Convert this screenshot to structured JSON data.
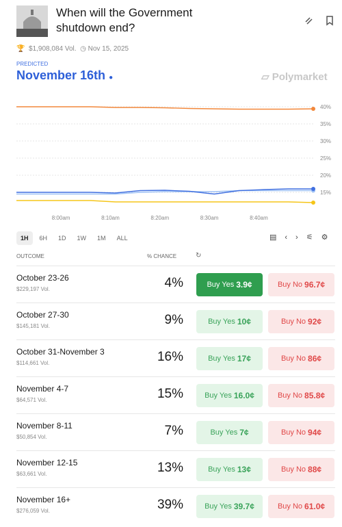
{
  "header": {
    "title": "When will the Government shutdown end?",
    "volume": "$1,908,084 Vol.",
    "date": "Nov 15, 2025"
  },
  "prediction": {
    "label": "PREDICTED",
    "value": "November 16th",
    "brand": "Polymarket"
  },
  "chart_data": {
    "type": "line",
    "x": [
      471,
      476,
      481,
      486,
      491,
      496,
      501,
      506,
      511,
      516,
      521,
      526,
      531
    ],
    "xlim": [
      471,
      531
    ],
    "xticks": [
      {
        "value": 480,
        "label": "8:00am"
      },
      {
        "value": 490,
        "label": "8:10am"
      },
      {
        "value": 500,
        "label": "8:20am"
      },
      {
        "value": 510,
        "label": "8:30am"
      },
      {
        "value": 520,
        "label": "8:40am"
      }
    ],
    "ylim": [
      11,
      42
    ],
    "yticks": [
      {
        "value": 40,
        "label": "40%"
      },
      {
        "value": 35,
        "label": "35%"
      },
      {
        "value": 30,
        "label": "30%"
      },
      {
        "value": 25,
        "label": "25%"
      },
      {
        "value": 20,
        "label": "20%"
      },
      {
        "value": 15,
        "label": "15%"
      }
    ],
    "grid": true,
    "series": [
      {
        "color": "#f2873a",
        "values": [
          40,
          40,
          40,
          40,
          39.8,
          39.8,
          39.7,
          39.5,
          39.4,
          39.3,
          39.3,
          39.3,
          39.4
        ]
      },
      {
        "color": "#9ec1f5",
        "values": [
          14.5,
          14.5,
          14.5,
          14.5,
          14.5,
          15,
          15.2,
          15.2,
          15.2,
          15.5,
          15.5,
          15.5,
          15.5
        ]
      },
      {
        "color": "#3f6fe0",
        "values": [
          15,
          15,
          15,
          15,
          14.8,
          15.5,
          15.6,
          15.3,
          14.5,
          15.5,
          15.8,
          16,
          16
        ]
      },
      {
        "color": "#f5c518",
        "values": [
          12.6,
          12.6,
          12.6,
          12.6,
          12.2,
          12.2,
          12.2,
          12.2,
          12.2,
          12.2,
          12.2,
          12.2,
          12
        ]
      }
    ]
  },
  "ranges": {
    "options": [
      "1H",
      "6H",
      "1D",
      "1W",
      "1M",
      "ALL"
    ],
    "selected": "1H"
  },
  "table": {
    "columns": [
      "OUTCOME",
      "% CHANCE"
    ],
    "buy_yes": "Buy Yes",
    "buy_no": "Buy No",
    "rows": [
      {
        "name": "October 23-26",
        "volume": "$229,197 Vol.",
        "chance": "4%",
        "yes": "3.9¢",
        "no": "96.7¢"
      },
      {
        "name": "October 27-30",
        "volume": "$145,181 Vol.",
        "chance": "9%",
        "yes": "10¢",
        "no": "92¢"
      },
      {
        "name": "October 31-November 3",
        "volume": "$114,661 Vol.",
        "chance": "16%",
        "yes": "17¢",
        "no": "86¢"
      },
      {
        "name": "November 4-7",
        "volume": "$64,571 Vol.",
        "chance": "15%",
        "yes": "16.0¢",
        "no": "85.8¢"
      },
      {
        "name": "November 8-11",
        "volume": "$50,854 Vol.",
        "chance": "7%",
        "yes": "7¢",
        "no": "94¢"
      },
      {
        "name": "November 12-15",
        "volume": "$63,661 Vol.",
        "chance": "13%",
        "yes": "13¢",
        "no": "88¢"
      },
      {
        "name": "November 16+",
        "volume": "$276,059 Vol.",
        "chance": "39%",
        "yes": "39.7¢",
        "no": "61.0¢"
      }
    ]
  }
}
